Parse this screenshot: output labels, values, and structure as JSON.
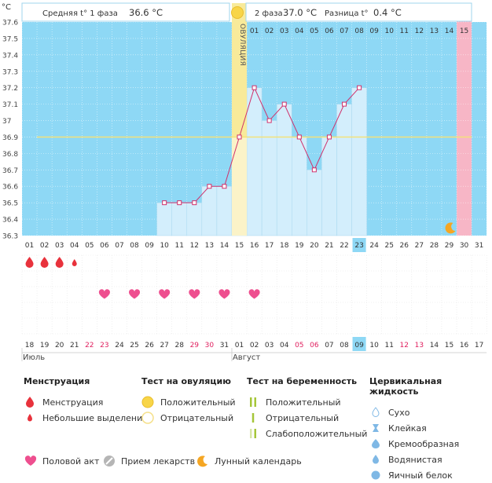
{
  "header": {
    "unit": "°C",
    "phase1_label": "Средняя t° 1 фаза",
    "phase1_value": "36.6 °C",
    "phase2_label": "2 фаза",
    "phase2_value": "37.0 °C",
    "diff_label": "Разница t°",
    "diff_value": "0.4 °C",
    "ovulation_label": "ОВУЛЯЦИЯ"
  },
  "chart_data": {
    "type": "line",
    "ylim": [
      36.3,
      37.6
    ],
    "y_ticks": [
      "37.6",
      "37.5",
      "37.4",
      "37.3",
      "37.2",
      "37.1",
      "37",
      "36.9",
      "36.8",
      "36.7",
      "36.6",
      "36.5",
      "36.4",
      "36.3"
    ],
    "cycle_days": [
      "01",
      "02",
      "03",
      "04",
      "05",
      "06",
      "07",
      "08",
      "09",
      "10",
      "11",
      "12",
      "13",
      "14",
      "15",
      "16",
      "17",
      "18",
      "19",
      "20",
      "21",
      "22",
      "23",
      "24",
      "25",
      "26",
      "27",
      "28",
      "29",
      "30",
      "31"
    ],
    "phase2_days": [
      "01",
      "02",
      "03",
      "04",
      "05",
      "06",
      "07",
      "08",
      "09",
      "10",
      "11",
      "12",
      "13",
      "14",
      "15"
    ],
    "dates": [
      "18",
      "19",
      "20",
      "21",
      "22",
      "23",
      "24",
      "25",
      "26",
      "27",
      "28",
      "29",
      "30",
      "31",
      "01",
      "02",
      "03",
      "04",
      "05",
      "06",
      "07",
      "08",
      "09",
      "10",
      "11",
      "12",
      "13",
      "14",
      "15",
      "16",
      "17"
    ],
    "red_dates": [
      4,
      5,
      11,
      12,
      18,
      19,
      25,
      26
    ],
    "months": [
      "Июль",
      "Август"
    ],
    "temperatures": [
      null,
      null,
      null,
      null,
      null,
      null,
      null,
      null,
      null,
      36.5,
      36.5,
      36.5,
      36.6,
      36.6,
      36.9,
      37.2,
      37.0,
      37.1,
      36.9,
      36.7,
      36.9,
      37.1,
      37.2,
      null,
      null,
      null,
      null,
      null,
      null,
      null,
      null
    ],
    "coverline": 36.9,
    "ovulation_day": 15,
    "today_day": 23,
    "expected_period_day": 30,
    "moon_day": 29,
    "menstruation_days": [
      1,
      2,
      3
    ],
    "light_spotting_days": [
      4
    ],
    "intercourse_days": [
      6,
      8,
      10,
      12,
      14,
      16
    ]
  },
  "legend": {
    "menstruation": {
      "title": "Менструация",
      "items": [
        "Менструация",
        "Небольшие выделения"
      ]
    },
    "ovulation_test": {
      "title": "Тест на овуляцию",
      "items": [
        "Положительный",
        "Отрицательный"
      ]
    },
    "pregnancy_test": {
      "title": "Тест на беременность",
      "items": [
        "Положительный",
        "Отрицательный",
        "Слабоположительный"
      ]
    },
    "cervical": {
      "title": "Цервикальная жидкость",
      "items": [
        "Сухо",
        "Клейкая",
        "Кремообразная",
        "Водянистая",
        "Яичный белок"
      ]
    },
    "bottom": [
      "Половой акт",
      "Прием лекарств",
      "Лунный календарь"
    ]
  },
  "colors": {
    "chart_bg": "#8ed8f5",
    "bar_fill": "#d3eefc",
    "bar_stroke": "#a9d8ef",
    "line": "#d0306b",
    "coverline": "#f3e27a",
    "ovulation": "#f8ea9a",
    "expected_period": "#f7b6c6",
    "today": "#8ed8f5",
    "menstruation": "#e8323c",
    "heart": "#ee4f8f",
    "moon": "#f5a623",
    "pill": "#b5b5b5",
    "ov_pos": "#f8d548",
    "ov_neg": "#f5e7a0",
    "preg_pos": "#a5c639",
    "preg_weak": "#d8e6a8",
    "cervical": "#7fb8e5"
  }
}
